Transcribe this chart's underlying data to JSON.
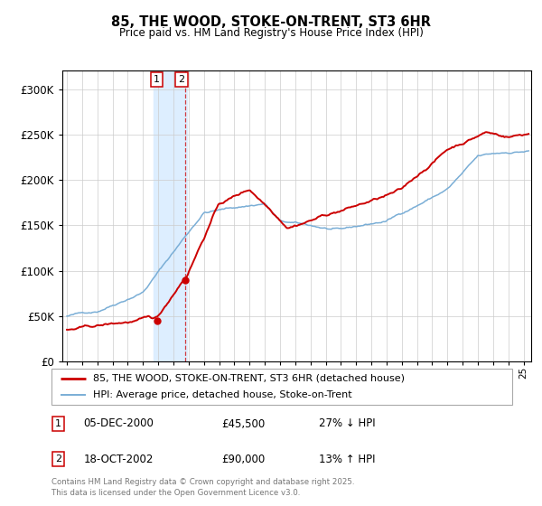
{
  "title": "85, THE WOOD, STOKE-ON-TRENT, ST3 6HR",
  "subtitle": "Price paid vs. HM Land Registry's House Price Index (HPI)",
  "legend_line1": "85, THE WOOD, STOKE-ON-TRENT, ST3 6HR (detached house)",
  "legend_line2": "HPI: Average price, detached house, Stoke-on-Trent",
  "annotation1_date": "05-DEC-2000",
  "annotation1_price": "£45,500",
  "annotation1_hpi": "27% ↓ HPI",
  "annotation2_date": "18-OCT-2002",
  "annotation2_price": "£90,000",
  "annotation2_hpi": "13% ↑ HPI",
  "footer": "Contains HM Land Registry data © Crown copyright and database right 2025.\nThis data is licensed under the Open Government Licence v3.0.",
  "red_color": "#cc0000",
  "blue_color": "#7aaed6",
  "bg_color": "#ffffff",
  "grid_color": "#cccccc",
  "highlight_color": "#ddeeff",
  "sale1_x": 2000.92,
  "sale1_y": 45500,
  "sale2_x": 2002.79,
  "sale2_y": 90000,
  "ylim": [
    0,
    320000
  ],
  "xlim": [
    1994.7,
    2025.5
  ],
  "yticks": [
    0,
    50000,
    100000,
    150000,
    200000,
    250000,
    300000
  ]
}
